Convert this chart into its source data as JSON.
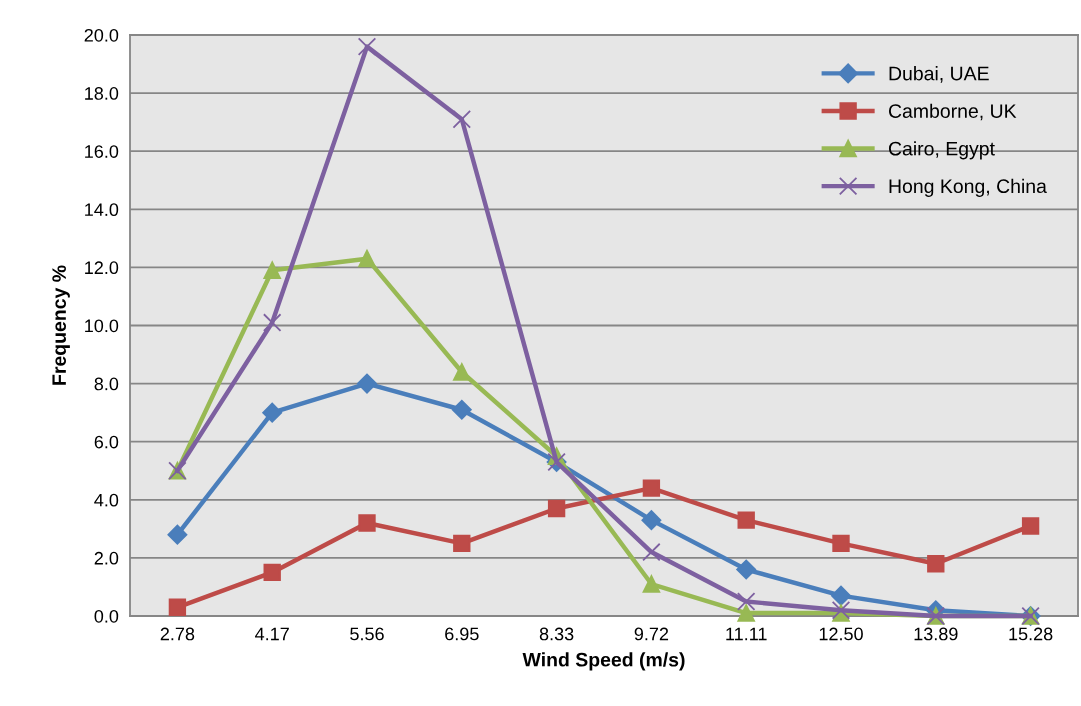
{
  "chart_data": {
    "type": "line",
    "xlabel": "Wind Speed (m/s)",
    "ylabel": "Frequency %",
    "categories": [
      "2.78",
      "4.17",
      "5.56",
      "6.95",
      "8.33",
      "9.72",
      "11.11",
      "12.50",
      "13.89",
      "15.28"
    ],
    "series": [
      {
        "name": "Dubai, UAE",
        "color": "#4a7ebb",
        "marker": "diamond",
        "values": [
          2.8,
          7.0,
          8.0,
          7.1,
          5.3,
          3.3,
          1.6,
          0.7,
          0.2,
          0.0
        ]
      },
      {
        "name": "Camborne, UK",
        "color": "#be4b48",
        "marker": "square",
        "values": [
          0.3,
          1.5,
          3.2,
          2.5,
          3.7,
          4.4,
          3.3,
          2.5,
          1.8,
          3.1
        ]
      },
      {
        "name": "Cairo, Egypt",
        "color": "#98b954",
        "marker": "triangle",
        "values": [
          5.0,
          11.9,
          12.3,
          8.4,
          5.5,
          1.1,
          0.1,
          0.1,
          0.0,
          0.0
        ]
      },
      {
        "name": "Hong Kong, China",
        "color": "#7d60a0",
        "marker": "cross",
        "values": [
          5.0,
          10.1,
          19.6,
          17.1,
          5.3,
          2.2,
          0.5,
          0.2,
          0.0,
          0.0
        ]
      }
    ],
    "ylim": [
      0,
      20
    ],
    "yticks": [
      {
        "value": 0,
        "label": "0.0"
      },
      {
        "value": 2,
        "label": "2.0"
      },
      {
        "value": 4,
        "label": "4.0"
      },
      {
        "value": 6,
        "label": "6.0"
      },
      {
        "value": 8,
        "label": "8.0"
      },
      {
        "value": 10,
        "label": "10.0"
      },
      {
        "value": 12,
        "label": "12.0"
      },
      {
        "value": 14,
        "label": "14.0"
      },
      {
        "value": 16,
        "label": "16.0"
      },
      {
        "value": 18,
        "label": "18.0"
      },
      {
        "value": 20,
        "label": "20.0"
      }
    ],
    "grid": "y",
    "legend": "top right",
    "line_style": "solid"
  }
}
